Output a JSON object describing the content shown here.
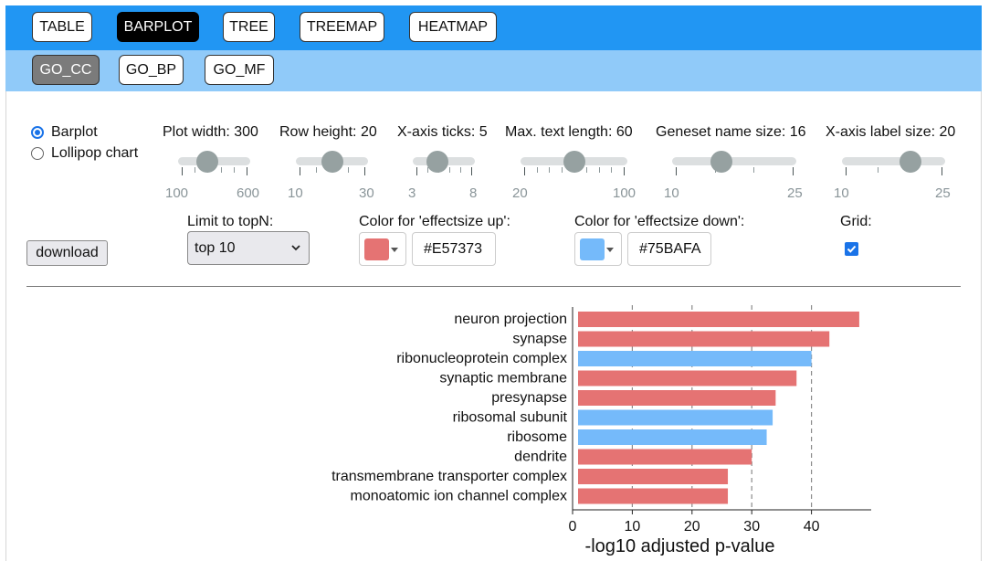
{
  "nav": {
    "tabs": [
      {
        "label": "TABLE",
        "active": false
      },
      {
        "label": "BARPLOT",
        "active": true
      },
      {
        "label": "TREE",
        "active": false
      },
      {
        "label": "TREEMAP",
        "active": false
      },
      {
        "label": "HEATMAP",
        "active": false
      }
    ],
    "subtabs": [
      {
        "label": "GO_CC",
        "active": true
      },
      {
        "label": "GO_BP",
        "active": false
      },
      {
        "label": "GO_MF",
        "active": false
      }
    ]
  },
  "plot_type": {
    "options": [
      "Barplot",
      "Lollipop chart"
    ],
    "selected": "Barplot"
  },
  "sliders": [
    {
      "label": "Plot width: 300",
      "min": "100",
      "max": "600",
      "fraction": 0.4
    },
    {
      "label": "Row height: 20",
      "min": "10",
      "max": "30",
      "fraction": 0.5
    },
    {
      "label": "X-axis ticks: 5",
      "min": "3",
      "max": "8",
      "fraction": 0.4
    },
    {
      "label": "Max. text length: 60",
      "min": "20",
      "max": "100",
      "fraction": 0.5
    },
    {
      "label": "Geneset name size: 16",
      "min": "10",
      "max": "25",
      "fraction": 0.4
    },
    {
      "label": "X-axis label size: 20",
      "min": "10",
      "max": "25",
      "fraction": 0.667
    }
  ],
  "download_label": "download",
  "topn": {
    "label": "Limit to topN:",
    "value": "top 10"
  },
  "color_up": {
    "label": "Color for 'effectsize up':",
    "hex": "#E57373"
  },
  "color_down": {
    "label": "Color for 'effectsize down':",
    "hex": "#75BAFA"
  },
  "grid": {
    "label": "Grid:",
    "checked": true
  },
  "chart_data": {
    "type": "bar",
    "orientation": "horizontal",
    "categories": [
      "neuron projection",
      "synapse",
      "ribonucleoprotein complex",
      "synaptic membrane",
      "presynapse",
      "ribosomal subunit",
      "ribosome",
      "dendrite",
      "transmembrane transporter complex",
      "monoatomic ion channel complex"
    ],
    "values": [
      48,
      43,
      40,
      37.5,
      34,
      33.5,
      32.5,
      30,
      26,
      26
    ],
    "direction": [
      "up",
      "up",
      "down",
      "up",
      "up",
      "down",
      "down",
      "up",
      "up",
      "up"
    ],
    "xticks": [
      "0",
      "10",
      "20",
      "30",
      "40"
    ],
    "xlabel": "-log10 adjusted p-value",
    "xlim": [
      0,
      50
    ],
    "grid": true
  }
}
